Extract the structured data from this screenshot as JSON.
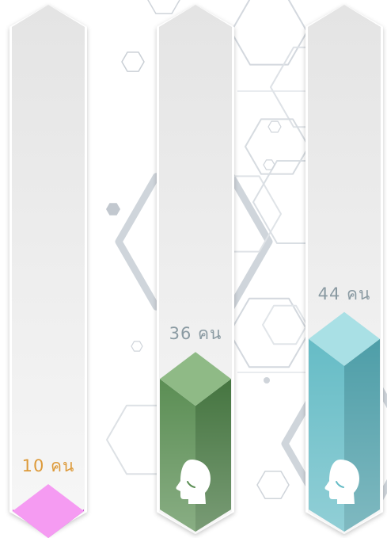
{
  "chart_data": {
    "type": "bar",
    "title": "",
    "xlabel": "",
    "ylabel": "",
    "categories": [
      "",
      "",
      ""
    ],
    "values": [
      10,
      36,
      44
    ],
    "unit": "คน",
    "value_labels": [
      "10 คน",
      "36 คน",
      "44 คน"
    ],
    "ylim": [
      0,
      60
    ],
    "grid": false,
    "icons": [
      "",
      "person-head-icon",
      "person-head-icon"
    ],
    "colors": [
      {
        "top": "#f59bf2",
        "left": "#e548e6",
        "right": "#b62fc4",
        "label": "#dd9a3a"
      },
      {
        "top": "#8fba86",
        "left": "#5b8e54",
        "right": "#457540",
        "label": "#8a9aa2"
      },
      {
        "top": "#a9e0e5",
        "left": "#66bcc6",
        "right": "#4e9ea8",
        "label": "#8a9aa2"
      }
    ]
  }
}
